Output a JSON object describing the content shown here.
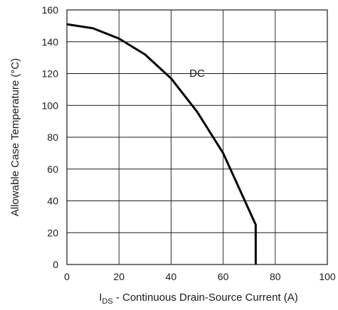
{
  "chart_data": {
    "type": "line",
    "title": "",
    "xlabel": {
      "main": "I",
      "subscript": "DS",
      "rest": " - Continuous Drain-Source Current (A)"
    },
    "ylabel": "Allowable Case Temperature (°C)",
    "xlim": [
      0,
      100
    ],
    "ylim": [
      0,
      160
    ],
    "xticks": [
      0,
      20,
      40,
      60,
      80,
      100
    ],
    "yticks": [
      0,
      20,
      40,
      60,
      80,
      100,
      120,
      140,
      160
    ],
    "grid": true,
    "legend": "none",
    "series": [
      {
        "name": "DC",
        "color": "#000000",
        "x": [
          0,
          10,
          20,
          30,
          40,
          50,
          60,
          70,
          72.5,
          72.5
        ],
        "y": [
          151,
          148.5,
          142,
          132,
          117,
          96,
          70,
          34,
          25,
          0
        ]
      }
    ],
    "annotations": [
      {
        "text": "DC",
        "x": 50,
        "y": 118
      }
    ]
  }
}
